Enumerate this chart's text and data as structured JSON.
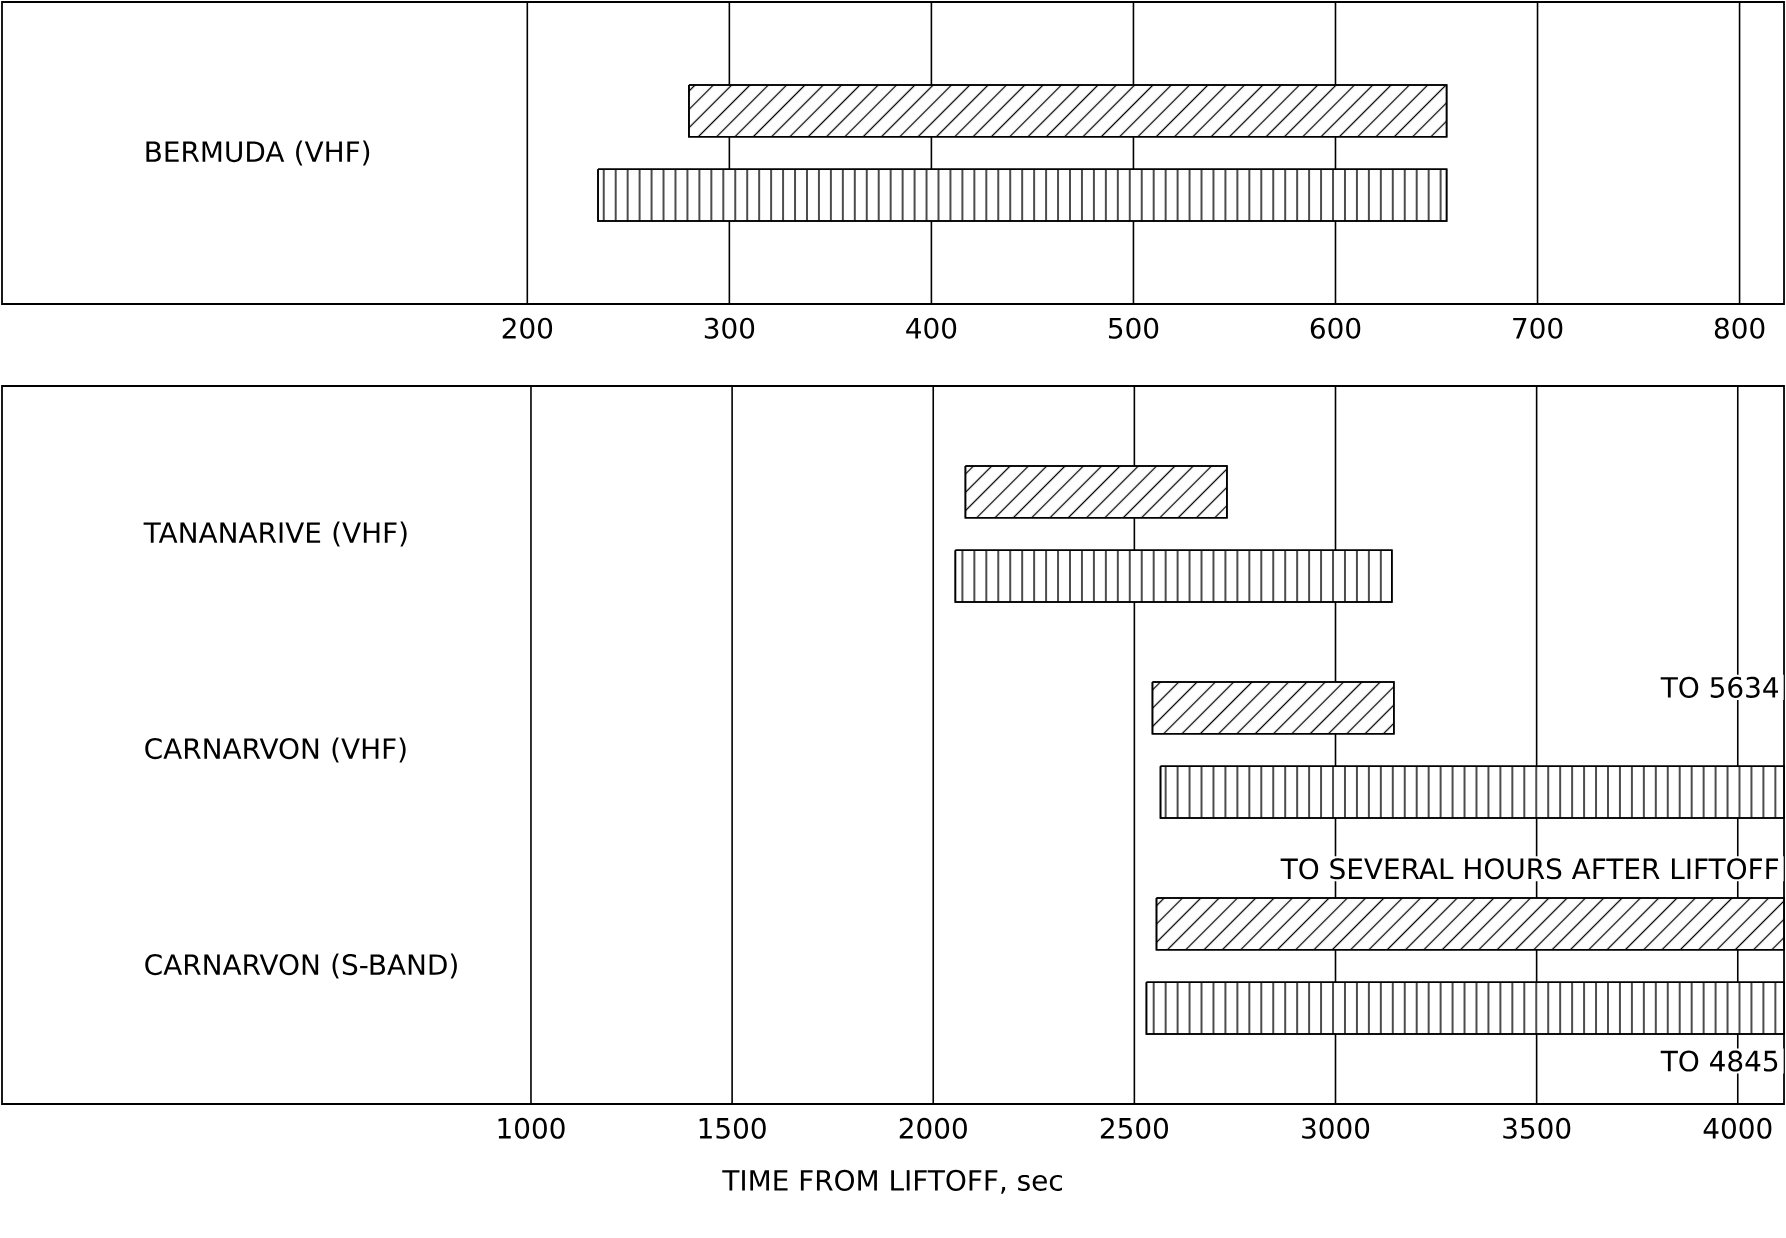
{
  "chart_data": [
    {
      "type": "bar",
      "orientation": "horizontal",
      "categories": [
        "BERMUDA (VHF)"
      ],
      "series": [
        {
          "color": "#000000",
          "base": [
            280
          ],
          "values": [
            375
          ]
        },
        {
          "color": "#000000",
          "base": [
            235
          ],
          "values": [
            420
          ]
        }
      ],
      "xlim": [
        -60,
        822
      ],
      "xticks": [
        200,
        300,
        400,
        500,
        600,
        700,
        800
      ],
      "grid": "x"
    },
    {
      "type": "bar",
      "orientation": "horizontal",
      "categories": [
        "TANANARIVE (VHF)",
        "CARNARVON (VHF)",
        "CARNARVON (S-BAND)"
      ],
      "series": [
        {
          "color": "#000000",
          "base": [
            2080,
            2545,
            2555
          ],
          "values": [
            650,
            600,
            1560
          ]
        },
        {
          "color": "#000000",
          "base": [
            2055,
            2565,
            2530
          ],
          "values": [
            1085,
            1550,
            1585
          ]
        }
      ],
      "xlim": [
        -315,
        4115
      ],
      "xticks": [
        1000,
        1500,
        2000,
        2500,
        3000,
        3500,
        4000
      ],
      "grid": "x",
      "xlabel": "TIME FROM LIFTOFF, sec",
      "annotations": [
        "TO 5634",
        "TO SEVERAL HOURS AFTER LIFTOFF",
        "TO 4845"
      ]
    }
  ]
}
